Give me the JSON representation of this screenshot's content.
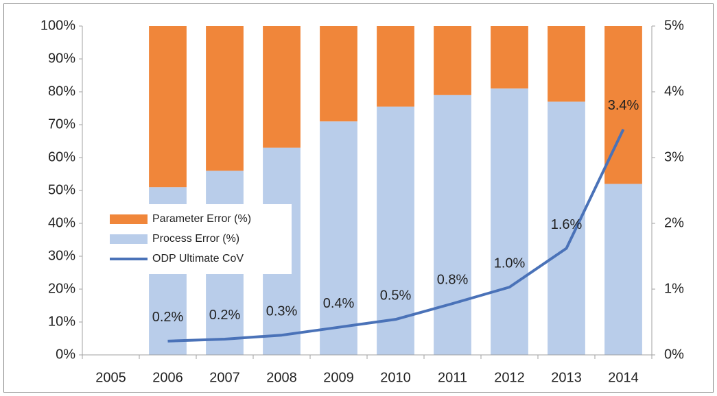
{
  "chart_data": {
    "type": "bar",
    "categories": [
      "2005",
      "2006",
      "2007",
      "2008",
      "2009",
      "2010",
      "2011",
      "2012",
      "2013",
      "2014"
    ],
    "series": [
      {
        "name": "Process Error (%)",
        "type": "bar",
        "color": "#b9cdea",
        "values": [
          null,
          51,
          56,
          63,
          71,
          75.5,
          79,
          81,
          77,
          52
        ]
      },
      {
        "name": "Parameter Error (%)",
        "type": "bar",
        "color": "#f0863a",
        "values": [
          null,
          49,
          44,
          37,
          29,
          24.5,
          21,
          19,
          23,
          48
        ]
      },
      {
        "name": "ODP Ultimate CoV",
        "type": "line",
        "axis": "y2",
        "color": "#4a72b8",
        "values": [
          null,
          0.21,
          0.24,
          0.3,
          0.42,
          0.54,
          0.78,
          1.03,
          1.62,
          3.43
        ],
        "value_labels": [
          null,
          "0.2%",
          "0.2%",
          "0.3%",
          "0.4%",
          "0.5%",
          "0.8%",
          "1.0%",
          "1.6%",
          "3.4%"
        ]
      }
    ],
    "ylim": [
      0,
      100
    ],
    "yticks": [
      {
        "value": 0,
        "label": "0%"
      },
      {
        "value": 10,
        "label": "10%"
      },
      {
        "value": 20,
        "label": "20%"
      },
      {
        "value": 30,
        "label": "30%"
      },
      {
        "value": 40,
        "label": "40%"
      },
      {
        "value": 50,
        "label": "50%"
      },
      {
        "value": 60,
        "label": "60%"
      },
      {
        "value": 70,
        "label": "70%"
      },
      {
        "value": 80,
        "label": "80%"
      },
      {
        "value": 90,
        "label": "90%"
      },
      {
        "value": 100,
        "label": "100%"
      }
    ],
    "y2lim": [
      0,
      5
    ],
    "y2ticks": [
      {
        "value": 0,
        "label": "0%"
      },
      {
        "value": 1,
        "label": "1%"
      },
      {
        "value": 2,
        "label": "2%"
      },
      {
        "value": 3,
        "label": "3%"
      },
      {
        "value": 4,
        "label": "4%"
      },
      {
        "value": 5,
        "label": "5%"
      }
    ],
    "grid": false
  }
}
